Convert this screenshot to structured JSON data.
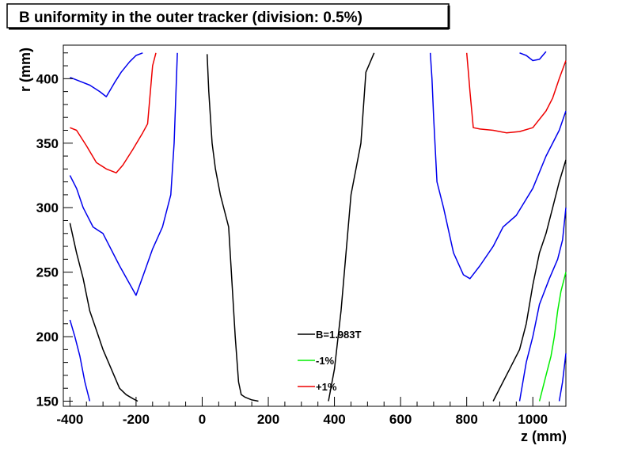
{
  "chart_data": {
    "type": "line",
    "title": "B uniformity in the outer tracker (division: 0.5%)",
    "xlabel": "z (mm)",
    "ylabel": "r (mm)",
    "xlim": [
      -420,
      1100
    ],
    "ylim": [
      146,
      426
    ],
    "xticks": [
      -400,
      -200,
      0,
      200,
      400,
      600,
      800,
      1000
    ],
    "yticks": [
      150,
      200,
      250,
      300,
      350,
      400
    ],
    "grid": false,
    "legend_position": "bottom-center",
    "legend": [
      {
        "label": "B=1.983T",
        "color": "#000000"
      },
      {
        "label": "-1%",
        "color": "#00ee00"
      },
      {
        "label": "+1%",
        "color": "#ee0000"
      }
    ],
    "series": [
      {
        "color": "#000000",
        "x": [
          15,
          20,
          30,
          40,
          55,
          80,
          100,
          110,
          118,
          130,
          150,
          170
        ],
        "y": [
          419,
          390,
          350,
          330,
          310,
          285,
          200,
          165,
          155,
          153,
          151,
          150
        ]
      },
      {
        "color": "#000000",
        "x": [
          382,
          400,
          420,
          450,
          480,
          495,
          520
        ],
        "y": [
          150,
          175,
          220,
          310,
          350,
          405,
          420
        ]
      },
      {
        "color": "#000000",
        "x": [
          -400,
          -380,
          -360,
          -340,
          -320,
          -300,
          -275,
          -250,
          -230,
          -210,
          -195
        ],
        "y": [
          288,
          265,
          245,
          220,
          205,
          190,
          175,
          160,
          155,
          152,
          150
        ]
      },
      {
        "color": "#000000",
        "x": [
          880,
          910,
          930,
          960,
          980,
          1000,
          1020,
          1040,
          1060,
          1080,
          1100
        ],
        "y": [
          150,
          165,
          175,
          190,
          210,
          240,
          265,
          280,
          300,
          320,
          337
        ]
      },
      {
        "color": "#0000ee",
        "x": [
          -400,
          -385,
          -370,
          -355,
          -340
        ],
        "y": [
          213,
          200,
          185,
          165,
          150
        ]
      },
      {
        "color": "#0000ee",
        "x": [
          -400,
          -380,
          -360,
          -330,
          -300,
          -250,
          -200,
          -175,
          -150,
          -120,
          -95,
          -85,
          -75
        ],
        "y": [
          325,
          315,
          300,
          285,
          280,
          255,
          232,
          250,
          268,
          285,
          310,
          350,
          420
        ]
      },
      {
        "color": "#0000ee",
        "x": [
          -400,
          -370,
          -340,
          -310,
          -290,
          -265,
          -245,
          -220,
          -200,
          -180
        ],
        "y": [
          401,
          398,
          395,
          390,
          386,
          397,
          405,
          413,
          418,
          420
        ]
      },
      {
        "color": "#0000ee",
        "x": [
          690,
          695,
          700,
          710,
          730,
          760,
          790,
          810,
          840,
          880,
          910,
          950,
          1000,
          1040,
          1080,
          1100
        ],
        "y": [
          420,
          400,
          370,
          320,
          300,
          265,
          248,
          245,
          255,
          270,
          285,
          294,
          315,
          340,
          360,
          375
        ]
      },
      {
        "color": "#0000ee",
        "x": [
          960,
          980,
          1000,
          1020,
          1040
        ],
        "y": [
          420,
          418,
          414,
          415,
          421
        ]
      },
      {
        "color": "#0000ee",
        "x": [
          960,
          980,
          1000,
          1020,
          1050,
          1075,
          1090,
          1100
        ],
        "y": [
          150,
          180,
          200,
          225,
          245,
          260,
          275,
          300
        ]
      },
      {
        "color": "#0000ee",
        "x": [
          1080,
          1090,
          1100
        ],
        "y": [
          150,
          165,
          187
        ]
      },
      {
        "color": "#00ee00",
        "x": [
          1020,
          1040,
          1055,
          1065,
          1075,
          1085,
          1095,
          1100
        ],
        "y": [
          150,
          170,
          185,
          200,
          220,
          235,
          245,
          250
        ]
      },
      {
        "color": "#ee0000",
        "x": [
          -400,
          -380,
          -350,
          -320,
          -290,
          -260,
          -240,
          -210,
          -180,
          -165,
          -160,
          -150,
          -140
        ],
        "y": [
          362,
          360,
          348,
          335,
          330,
          327,
          333,
          345,
          358,
          365,
          380,
          410,
          420
        ]
      },
      {
        "color": "#ee0000",
        "x": [
          800,
          805,
          810,
          820,
          840,
          880,
          920,
          960,
          1000,
          1040,
          1060,
          1080,
          1100
        ],
        "y": [
          420,
          405,
          390,
          362,
          361,
          360,
          358,
          359,
          362,
          375,
          385,
          400,
          414
        ]
      }
    ]
  }
}
